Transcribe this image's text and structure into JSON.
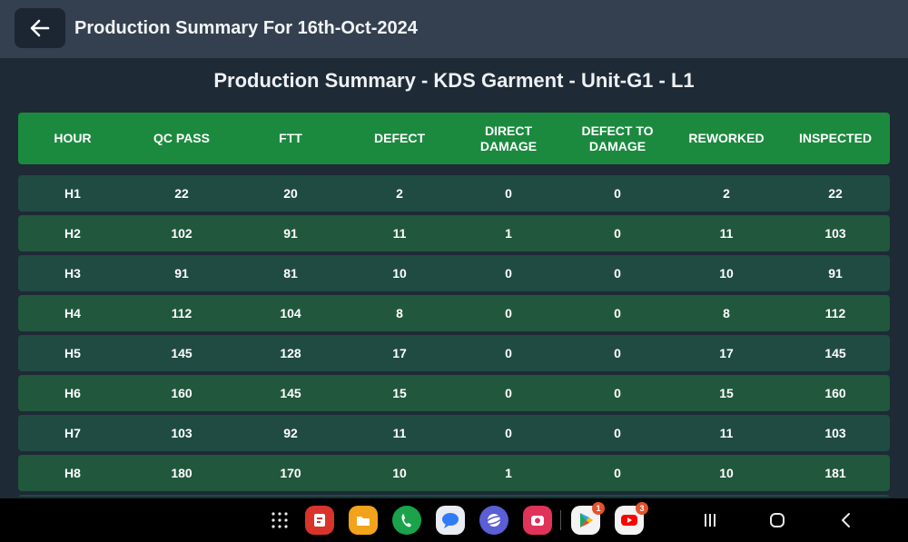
{
  "header": {
    "title": "Production Summary For 16th-Oct-2024",
    "back_icon": "arrow-left-icon"
  },
  "summary": {
    "heading": "Production Summary - KDS Garment - Unit-G1 - L1"
  },
  "table": {
    "columns": [
      [
        "HOUR"
      ],
      [
        "QC PASS"
      ],
      [
        "FTT"
      ],
      [
        "DEFECT"
      ],
      [
        "DIRECT",
        "DAMAGE"
      ],
      [
        "DEFECT TO",
        "DAMAGE"
      ],
      [
        "REWORKED"
      ],
      [
        "INSPECTED"
      ]
    ],
    "rows": [
      [
        "H1",
        "22",
        "20",
        "2",
        "0",
        "0",
        "2",
        "22"
      ],
      [
        "H2",
        "102",
        "91",
        "11",
        "1",
        "0",
        "11",
        "103"
      ],
      [
        "H3",
        "91",
        "81",
        "10",
        "0",
        "0",
        "10",
        "91"
      ],
      [
        "H4",
        "112",
        "104",
        "8",
        "0",
        "0",
        "8",
        "112"
      ],
      [
        "H5",
        "145",
        "128",
        "17",
        "0",
        "0",
        "17",
        "145"
      ],
      [
        "H6",
        "160",
        "145",
        "15",
        "0",
        "0",
        "15",
        "160"
      ],
      [
        "H7",
        "103",
        "92",
        "11",
        "0",
        "0",
        "11",
        "103"
      ],
      [
        "H8",
        "180",
        "170",
        "10",
        "1",
        "0",
        "10",
        "181"
      ]
    ],
    "colors": {
      "header_bg": "#1b8a3f",
      "row_odd_bg": "#1f4b43",
      "row_even_bg": "#21573d"
    }
  },
  "taskbar": {
    "apps": [
      {
        "name": "app-drawer-icon",
        "badge": ""
      },
      {
        "name": "notes-app-icon",
        "badge": ""
      },
      {
        "name": "files-app-icon",
        "badge": ""
      },
      {
        "name": "phone-app-icon",
        "badge": ""
      },
      {
        "name": "messages-app-icon",
        "badge": ""
      },
      {
        "name": "internet-app-icon",
        "badge": ""
      },
      {
        "name": "screen-recorder-icon",
        "badge": ""
      },
      {
        "name": "play-store-icon",
        "badge": "1"
      },
      {
        "name": "youtube-icon",
        "badge": "3"
      }
    ],
    "nav": [
      "recents-icon",
      "home-icon",
      "back-nav-icon"
    ]
  }
}
